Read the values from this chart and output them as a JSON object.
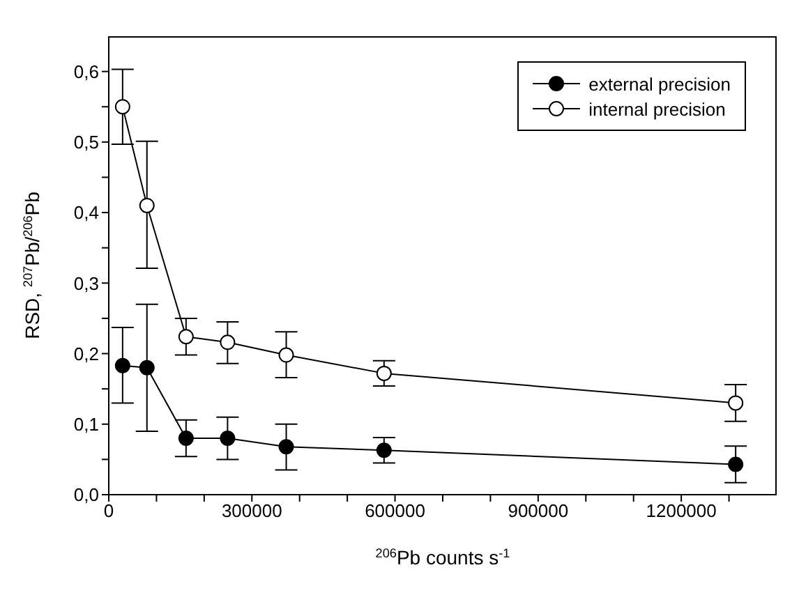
{
  "chart_data": {
    "type": "line",
    "xlabel": "$^{206}$Pb counts s$^{-1}$",
    "ylabel": "RSD, $^{207}$Pb/$^{206}$Pb",
    "x": [
      29000,
      80000,
      162000,
      249000,
      372000,
      577000,
      1314000
    ],
    "series": [
      {
        "name": "external precision",
        "color": "#000000",
        "values": [
          0.183,
          0.18,
          0.08,
          0.08,
          0.068,
          0.063,
          0.043
        ],
        "errors": [
          [
            0.13,
            0.237
          ],
          [
            0.09,
            0.27
          ],
          [
            0.054,
            0.106
          ],
          [
            0.05,
            0.11
          ],
          [
            0.035,
            0.1
          ],
          [
            0.045,
            0.081
          ],
          [
            0.017,
            0.069
          ]
        ]
      },
      {
        "name": "internal precision",
        "color": "#ffffff",
        "values": [
          0.55,
          0.41,
          0.224,
          0.216,
          0.198,
          0.172,
          0.13
        ],
        "errors": [
          [
            0.497,
            0.603
          ],
          [
            0.321,
            0.501
          ],
          [
            0.198,
            0.25
          ],
          [
            0.186,
            0.245
          ],
          [
            0.166,
            0.231
          ],
          [
            0.154,
            0.19
          ],
          [
            0.104,
            0.156
          ]
        ]
      }
    ],
    "xlim": [
      0,
      1400000
    ],
    "xticks": [
      0,
      {
        "value": 100000,
        "label": null
      },
      {
        "value": 200000,
        "label": null
      },
      300000,
      {
        "value": 400000,
        "label": null
      },
      {
        "value": 500000,
        "label": null
      },
      600000,
      {
        "value": 700000,
        "label": null
      },
      {
        "value": 800000,
        "label": null
      },
      900000,
      {
        "value": 1000000,
        "label": null
      },
      {
        "value": 1100000,
        "label": null
      },
      1200000,
      {
        "value": 1300000,
        "label": null
      }
    ],
    "ylim": [
      0,
      0.65
    ],
    "yticks": [
      {
        "value": 0,
        "label": "0,0"
      },
      {
        "value": 0.05,
        "label": null
      },
      {
        "value": 0.1,
        "label": "0,1"
      },
      {
        "value": 0.15,
        "label": null
      },
      {
        "value": 0.2,
        "label": "0,2"
      },
      {
        "value": 0.25,
        "label": null
      },
      {
        "value": 0.3,
        "label": "0,3"
      },
      {
        "value": 0.35,
        "label": null
      },
      {
        "value": 0.4,
        "label": "0,4"
      },
      {
        "value": 0.45,
        "label": null
      },
      {
        "value": 0.5,
        "label": "0,5"
      },
      {
        "value": 0.55,
        "label": null
      },
      {
        "value": 0.6,
        "label": "0,6"
      }
    ],
    "marker": "circle",
    "line_style": "solid",
    "legend": "top right",
    "grid": false
  }
}
